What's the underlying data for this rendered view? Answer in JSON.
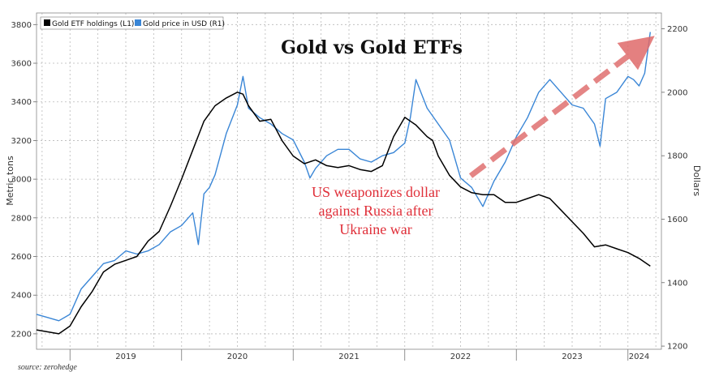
{
  "chart_data": {
    "type": "line",
    "title": "Gold vs Gold ETFs",
    "annotation": "US weaponizes dollar against Russia after Ukraine war",
    "annotation_lines": [
      "US weaponizes dollar",
      "against Russia after",
      "Ukraine war"
    ],
    "source": "source: zerohedge",
    "ylabel_left": "Metric tons",
    "ylabel_right": "Dollars",
    "ylim_left": [
      2120,
      3860
    ],
    "ylim_right": [
      1190,
      2250
    ],
    "yticks_left": [
      2200,
      2400,
      2600,
      2800,
      3000,
      3200,
      3400,
      3600,
      3800
    ],
    "yticks_right": [
      1200,
      1400,
      1600,
      1800,
      2000,
      2200
    ],
    "xlim": [
      2018.7,
      2024.3
    ],
    "xtick_labels": [
      "2019",
      "2020",
      "2021",
      "2022",
      "2023",
      "2024"
    ],
    "xtick_positions": [
      2019.5,
      2020.5,
      2021.5,
      2022.5,
      2023.5,
      2024.1
    ],
    "x_year_boundaries": [
      2019,
      2020,
      2021,
      2022,
      2023,
      2024
    ],
    "grid": true,
    "legend_placement": "top-left",
    "series": [
      {
        "name": "Gold ETF holdings (L1)",
        "axis": "left",
        "color": "#000000",
        "x": [
          2018.7,
          2018.8,
          2018.9,
          2019.0,
          2019.1,
          2019.2,
          2019.3,
          2019.4,
          2019.5,
          2019.6,
          2019.7,
          2019.8,
          2019.9,
          2020.0,
          2020.1,
          2020.2,
          2020.3,
          2020.4,
          2020.5,
          2020.55,
          2020.6,
          2020.7,
          2020.8,
          2020.9,
          2021.0,
          2021.1,
          2021.2,
          2021.3,
          2021.4,
          2021.5,
          2021.6,
          2021.7,
          2021.8,
          2021.9,
          2022.0,
          2022.1,
          2022.2,
          2022.25,
          2022.3,
          2022.4,
          2022.5,
          2022.6,
          2022.7,
          2022.8,
          2022.9,
          2023.0,
          2023.1,
          2023.2,
          2023.3,
          2023.4,
          2023.5,
          2023.6,
          2023.7,
          2023.8,
          2023.9,
          2024.0,
          2024.1,
          2024.2
        ],
        "y": [
          2220,
          2210,
          2200,
          2240,
          2340,
          2420,
          2520,
          2560,
          2580,
          2600,
          2680,
          2730,
          2860,
          3000,
          3150,
          3300,
          3380,
          3420,
          3450,
          3440,
          3380,
          3300,
          3310,
          3200,
          3120,
          3080,
          3100,
          3070,
          3060,
          3070,
          3050,
          3040,
          3070,
          3220,
          3320,
          3280,
          3220,
          3200,
          3120,
          3020,
          2960,
          2930,
          2920,
          2920,
          2880,
          2880,
          2900,
          2920,
          2900,
          2840,
          2780,
          2720,
          2650,
          2660,
          2640,
          2620,
          2590,
          2550
        ]
      },
      {
        "name": "Gold price in USD (R1)",
        "axis": "right",
        "color": "#3a86d6",
        "x": [
          2018.7,
          2018.8,
          2018.9,
          2019.0,
          2019.1,
          2019.2,
          2019.3,
          2019.4,
          2019.5,
          2019.6,
          2019.7,
          2019.8,
          2019.9,
          2020.0,
          2020.1,
          2020.15,
          2020.2,
          2020.25,
          2020.3,
          2020.4,
          2020.5,
          2020.55,
          2020.6,
          2020.7,
          2020.8,
          2020.9,
          2021.0,
          2021.1,
          2021.15,
          2021.2,
          2021.3,
          2021.4,
          2021.5,
          2021.6,
          2021.7,
          2021.8,
          2021.9,
          2022.0,
          2022.05,
          2022.1,
          2022.2,
          2022.3,
          2022.4,
          2022.5,
          2022.6,
          2022.7,
          2022.8,
          2022.9,
          2023.0,
          2023.1,
          2023.2,
          2023.3,
          2023.4,
          2023.5,
          2023.6,
          2023.7,
          2023.75,
          2023.8,
          2023.9,
          2024.0,
          2024.05,
          2024.1,
          2024.15,
          2024.2
        ],
        "y": [
          1300,
          1290,
          1280,
          1300,
          1380,
          1420,
          1460,
          1470,
          1500,
          1490,
          1500,
          1520,
          1560,
          1580,
          1620,
          1520,
          1680,
          1700,
          1740,
          1870,
          1960,
          2050,
          1950,
          1920,
          1900,
          1870,
          1850,
          1780,
          1730,
          1760,
          1800,
          1820,
          1820,
          1790,
          1780,
          1800,
          1810,
          1840,
          1920,
          2040,
          1950,
          1900,
          1850,
          1730,
          1700,
          1640,
          1720,
          1780,
          1860,
          1920,
          2000,
          2040,
          2000,
          1960,
          1950,
          1900,
          1830,
          1980,
          2000,
          2050,
          2040,
          2020,
          2060,
          2190
        ]
      }
    ]
  }
}
